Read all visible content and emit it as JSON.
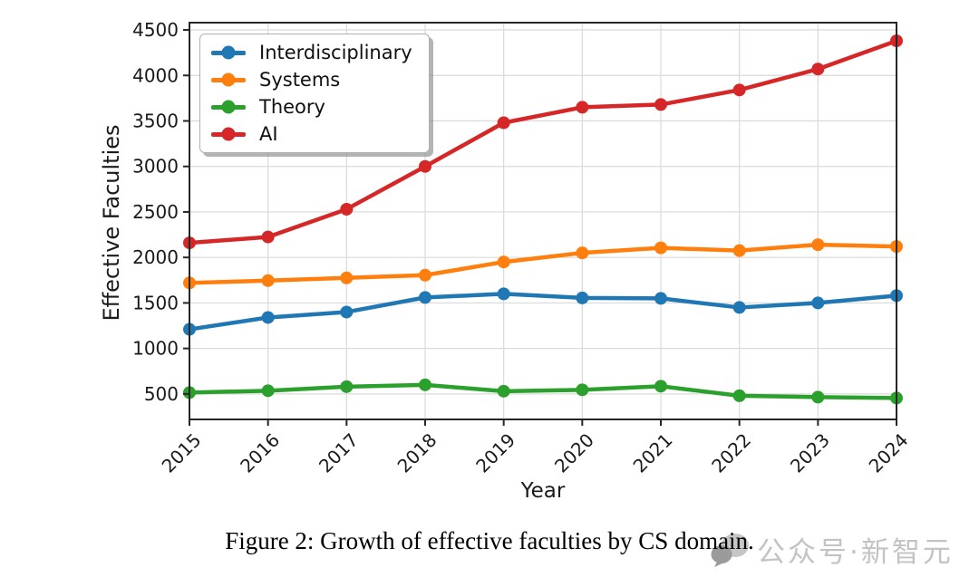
{
  "figure": {
    "caption": "Figure 2: Growth of effective faculties by CS domain."
  },
  "watermark": {
    "icon": "speech-bubbles-icon",
    "text": "公众号·新智元",
    "color": "#c3c3c3",
    "icon_color_front": "#9b9b9b",
    "icon_color_back": "#c6c6c6"
  },
  "chart_data": {
    "type": "line",
    "title": "",
    "xlabel": "Year",
    "ylabel": "Effective Faculties",
    "categories": [
      "2015",
      "2016",
      "2017",
      "2018",
      "2019",
      "2020",
      "2021",
      "2022",
      "2023",
      "2024"
    ],
    "series": [
      {
        "name": "Interdisciplinary",
        "color": "#1f77b4",
        "values": [
          1210,
          1340,
          1400,
          1560,
          1600,
          1555,
          1550,
          1450,
          1500,
          1580
        ]
      },
      {
        "name": "Systems",
        "color": "#ff7f0e",
        "values": [
          1720,
          1745,
          1775,
          1805,
          1950,
          2050,
          2105,
          2075,
          2140,
          2120
        ]
      },
      {
        "name": "Theory",
        "color": "#2ca02c",
        "values": [
          515,
          535,
          580,
          600,
          530,
          545,
          585,
          480,
          465,
          455
        ]
      },
      {
        "name": "AI",
        "color": "#d62728",
        "values": [
          2160,
          2225,
          2530,
          3000,
          3480,
          3650,
          3680,
          3840,
          4070,
          4380
        ]
      }
    ],
    "yticks": [
      500,
      1000,
      1500,
      2000,
      2500,
      3000,
      3500,
      4000,
      4500
    ],
    "ylim": [
      220,
      4580
    ],
    "grid": true,
    "legend_position": "upper left",
    "axis_color": "#262626",
    "grid_color": "#dadada",
    "tick_label_color": "#1a1a1a"
  }
}
